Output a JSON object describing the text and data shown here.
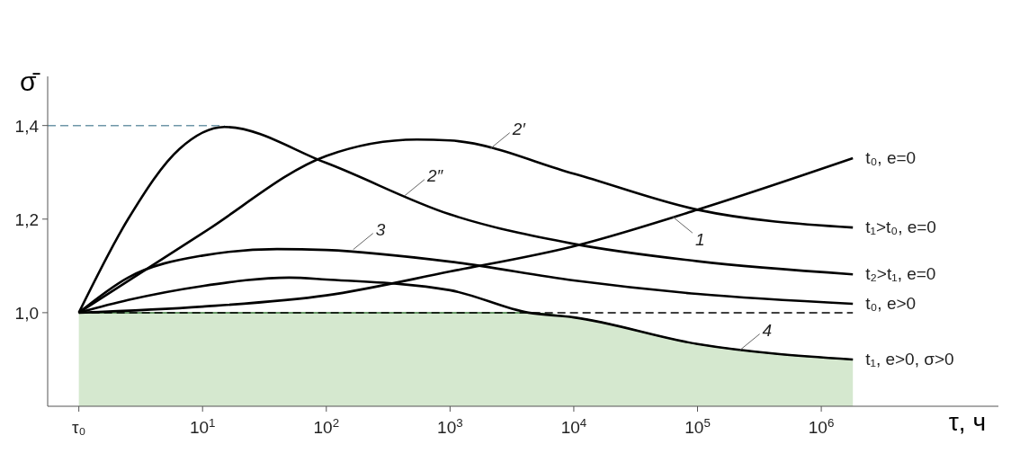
{
  "chart_data": {
    "type": "line",
    "xlabel": "τ, ч",
    "ylabel": "σ̄",
    "log": "x",
    "grid": false,
    "marker": "none",
    "line_style": "solid",
    "xlim": [
      0.56,
      27000000
    ],
    "xticks": [
      {
        "value": 1,
        "label": "τ₀"
      },
      {
        "value": 10,
        "label": "10$^{1}$"
      },
      {
        "value": 100,
        "label": "10$^{2}$"
      },
      {
        "value": 1000,
        "label": "10$^{3}$"
      },
      {
        "value": 10000,
        "label": "10$^{4}$"
      },
      {
        "value": 100000,
        "label": "10$^{5}$"
      },
      {
        "value": 1000000,
        "label": "10$^{6}$"
      }
    ],
    "ylim": [
      0.8,
      1.505
    ],
    "yticks": [
      {
        "value": 1,
        "label": "1,0"
      },
      {
        "value": 1.2,
        "label": "1,2"
      },
      {
        "value": 1.4,
        "label": "1,4"
      }
    ],
    "series": [
      {
        "type": "area",
        "color": "#d5e8cf",
        "x": [
          1,
          10,
          100,
          1000,
          4300,
          10000,
          100000,
          1800000
        ],
        "values": [
          1,
          1,
          1,
          1,
          1,
          0.99,
          0.933,
          0.9
        ]
      },
      {
        "type": "line",
        "color": "#000000",
        "line_style": "dashed",
        "x": [
          1,
          1800000
        ],
        "values": [
          1,
          1
        ]
      },
      {
        "type": "line",
        "color": "#6f96a8",
        "line_style": "dashed",
        "x": [
          0.56,
          15
        ],
        "values": [
          1.4,
          1.4
        ]
      },
      {
        "name": "t₀, e=0",
        "color": "#000000",
        "x": [
          1,
          10,
          100,
          1000,
          10000,
          100000,
          1800000
        ],
        "values": [
          1,
          1.013,
          1.037,
          1.088,
          1.142,
          1.22,
          1.33
        ]
      },
      {
        "name": "t₁>t₀, e=0",
        "color": "#000000",
        "x": [
          1,
          10,
          100,
          540,
          1000,
          10000,
          100000,
          1800000
        ],
        "values": [
          1,
          1.17,
          1.335,
          1.37,
          1.368,
          1.297,
          1.22,
          1.182
        ]
      },
      {
        "name": "t₂>t₁, e=0",
        "color": "#000000",
        "x": [
          1,
          2.5,
          6.5,
          15,
          100,
          1000,
          10000,
          100000,
          1800000
        ],
        "values": [
          1,
          1.2,
          1.35,
          1.397,
          1.32,
          1.21,
          1.147,
          1.11,
          1.082
        ]
      },
      {
        "name": "t₀, e>0",
        "color": "#000000",
        "x": [
          1,
          2.5,
          10,
          40,
          100,
          1000,
          10000,
          100000,
          1800000
        ],
        "values": [
          1,
          1.075,
          1.122,
          1.136,
          1.134,
          1.109,
          1.069,
          1.04,
          1.019
        ]
      },
      {
        "name": "t₁, e>0, σ>0",
        "color": "#000000",
        "x": [
          1,
          2.5,
          10,
          50,
          100,
          1000,
          4300,
          10000,
          100000,
          1800000
        ],
        "values": [
          1,
          1.027,
          1.057,
          1.075,
          1.071,
          1.048,
          1,
          0.99,
          0.933,
          0.9
        ]
      }
    ],
    "annotations": [
      {
        "text": "1",
        "x": 63000,
        "y": 1.205
      },
      {
        "text": "2′",
        "x": 2100,
        "y": 1.35
      },
      {
        "text": "2″",
        "x": 430,
        "y": 1.25
      },
      {
        "text": "3",
        "x": 165,
        "y": 1.135
      },
      {
        "text": "4",
        "x": 220000,
        "y": 0.92
      }
    ]
  }
}
